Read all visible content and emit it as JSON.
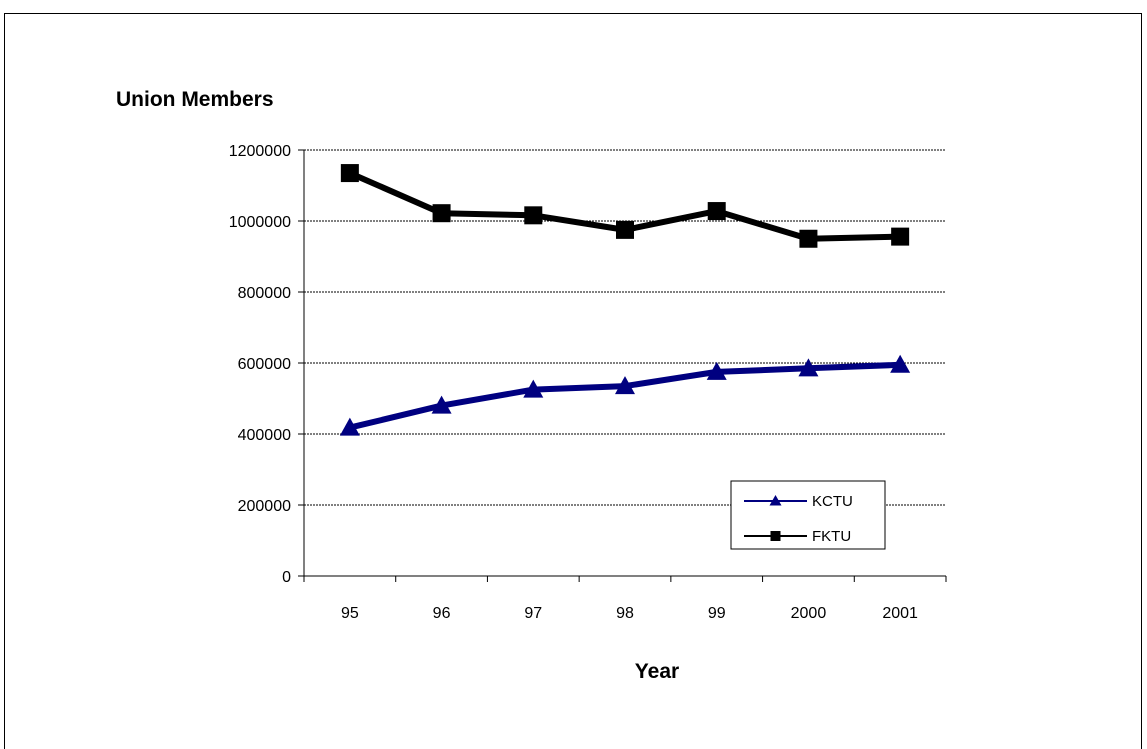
{
  "chart_data": {
    "type": "line",
    "title": "",
    "ylabel": "Union Members",
    "xlabel": "Year",
    "categories": [
      "95",
      "96",
      "97",
      "98",
      "99",
      "2000",
      "2001"
    ],
    "ylim": [
      0,
      1200000
    ],
    "yticks": [
      0,
      200000,
      400000,
      600000,
      800000,
      1000000,
      1200000
    ],
    "ytick_labels": [
      "0",
      "200000",
      "400000",
      "600000",
      "800000",
      "1000000",
      "1200000"
    ],
    "grid": true,
    "legend_position": "bottom-right",
    "series": [
      {
        "name": "KCTU",
        "marker": "triangle",
        "color": "#000080",
        "values": [
          418000,
          480000,
          525000,
          535000,
          575000,
          585000,
          595000
        ]
      },
      {
        "name": "FKTU",
        "marker": "square",
        "color": "#000000",
        "values": [
          1135000,
          1022000,
          1016000,
          975000,
          1028000,
          950000,
          956000
        ]
      }
    ]
  }
}
